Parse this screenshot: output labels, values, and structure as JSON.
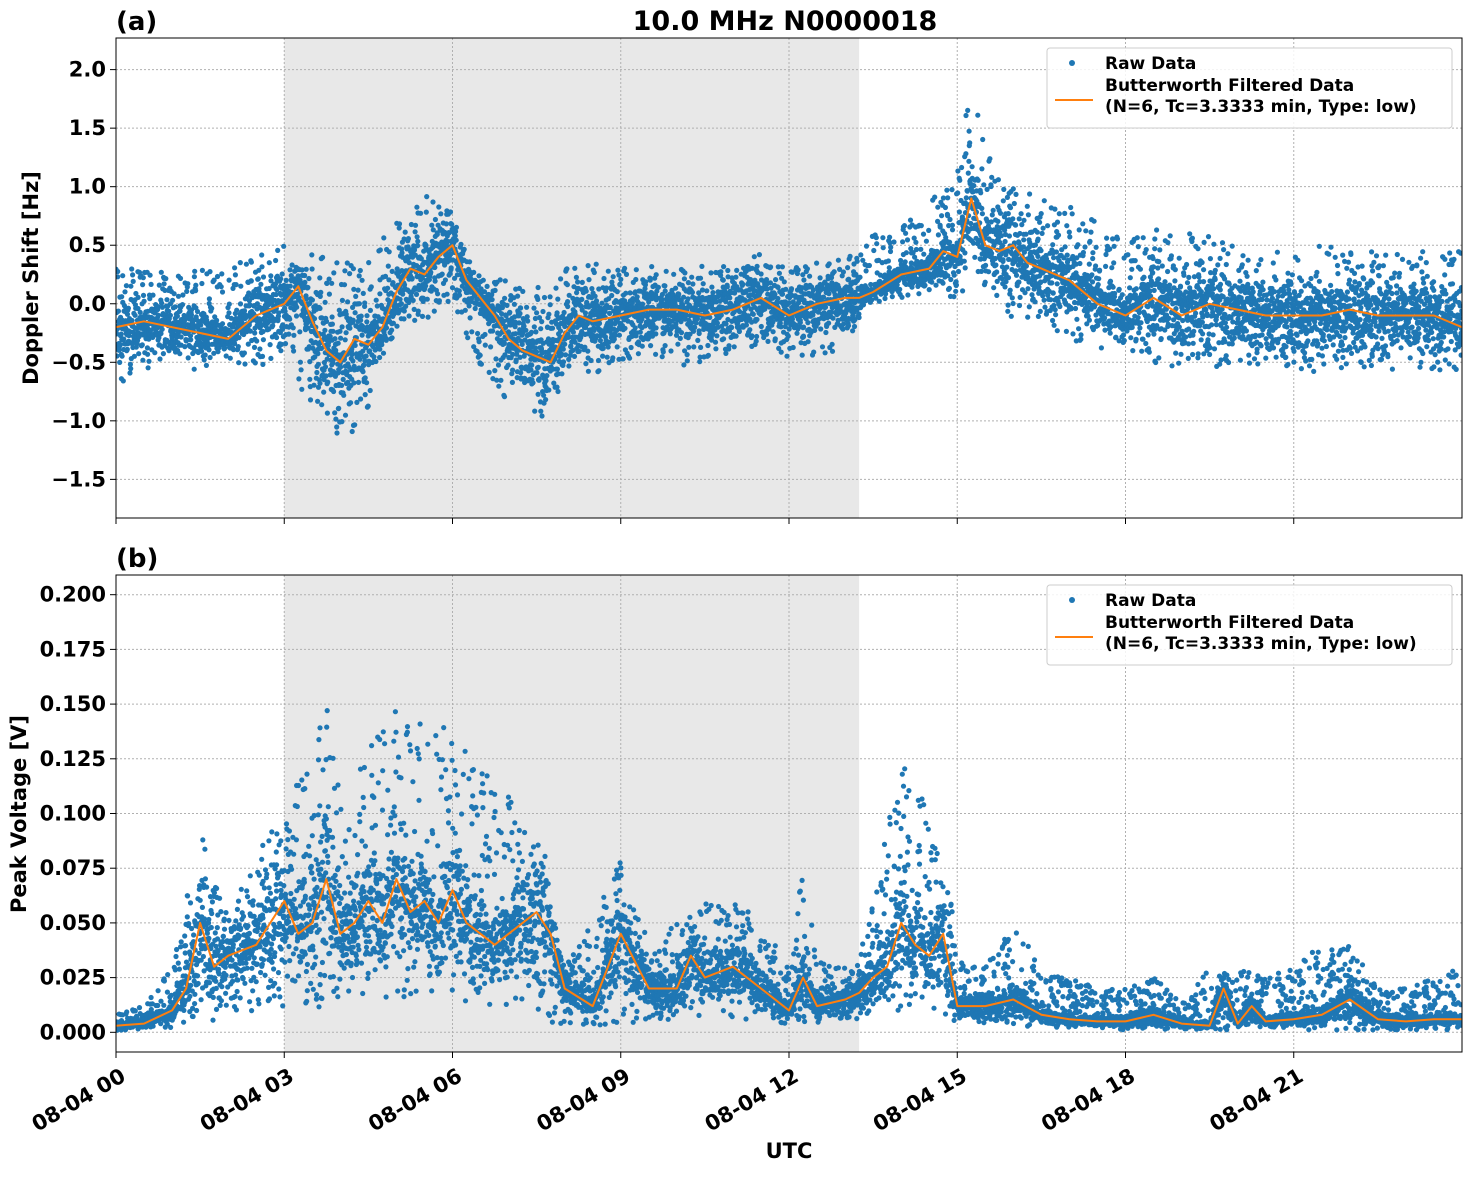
{
  "figure": {
    "title": "10.0 MHz N0000018",
    "xlabel": "UTC"
  },
  "colors": {
    "raw": "#1f77b4",
    "filtered": "#ff7f0e",
    "shade": "#e8e8e8",
    "grid": "#b0b0b0"
  },
  "chart_data": [
    {
      "panel": "(a)",
      "type": "scatter",
      "ylabel": "Doppler Shift [Hz]",
      "x_unit": "hours UTC since 08-04 00:00",
      "xlim": [
        0,
        24
      ],
      "ylim": [
        -1.83,
        2.27
      ],
      "yticks": [
        -1.5,
        -1.0,
        -0.5,
        0.0,
        0.5,
        1.0,
        1.5,
        2.0
      ],
      "ytick_labels": [
        "−1.5",
        "−1.0",
        "−0.5",
        "0.0",
        "0.5",
        "1.0",
        "1.5",
        "2.0"
      ],
      "xticks": [
        0,
        3,
        6,
        9,
        12,
        15,
        18,
        21
      ],
      "xtick_labels": [
        "08-04 00",
        "08-04 03",
        "08-04 06",
        "08-04 09",
        "08-04 12",
        "08-04 15",
        "08-04 18",
        "08-04 21"
      ],
      "shaded_interval": [
        3.0,
        13.25
      ],
      "grid": true,
      "legend": {
        "placement": "top-right",
        "entries": [
          "Raw Data",
          "Butterworth Filtered Data",
          "(N=6, Tc=3.3333 min, Type: low)"
        ]
      },
      "series": [
        {
          "name": "Raw Data",
          "kind": "band",
          "x": [
            0,
            0.5,
            1,
            1.5,
            2,
            2.5,
            3,
            3.5,
            3.75,
            4,
            4.25,
            4.5,
            5,
            5.5,
            5.75,
            6,
            6.25,
            6.5,
            7,
            7.5,
            7.75,
            8,
            8.5,
            9,
            9.5,
            10,
            10.5,
            11,
            11.5,
            12,
            12.5,
            13,
            13.25,
            13.5,
            14,
            14.5,
            15,
            15.25,
            15.5,
            16,
            16.5,
            17,
            17.5,
            18,
            18.5,
            19,
            19.5,
            20,
            20.5,
            21,
            21.5,
            22,
            22.5,
            23,
            23.5,
            24
          ],
          "low": [
            -0.7,
            -0.55,
            -0.6,
            -0.55,
            -0.5,
            -0.55,
            -0.45,
            -0.9,
            -1.05,
            -1.2,
            -1.1,
            -0.9,
            -0.35,
            -0.15,
            -0.05,
            0.05,
            -0.3,
            -0.55,
            -0.9,
            -0.95,
            -1.05,
            -0.6,
            -0.6,
            -0.5,
            -0.45,
            -0.55,
            -0.5,
            -0.4,
            -0.45,
            -0.45,
            -0.45,
            -0.4,
            -0.2,
            0.0,
            0.05,
            0.1,
            0.05,
            0.2,
            0.1,
            -0.15,
            -0.15,
            -0.3,
            -0.4,
            -0.4,
            -0.5,
            -0.55,
            -0.55,
            -0.5,
            -0.55,
            -0.55,
            -0.6,
            -0.55,
            -0.6,
            -0.55,
            -0.6,
            -0.6
          ],
          "high": [
            0.35,
            0.3,
            0.25,
            0.3,
            0.35,
            0.4,
            0.5,
            0.45,
            0.5,
            0.4,
            0.35,
            0.45,
            0.75,
            0.95,
            0.9,
            0.8,
            0.45,
            0.25,
            0.2,
            0.15,
            0.1,
            0.3,
            0.35,
            0.3,
            0.35,
            0.3,
            0.35,
            0.35,
            0.45,
            0.3,
            0.35,
            0.4,
            0.45,
            0.6,
            0.65,
            0.85,
            1.2,
            1.9,
            1.3,
            1.1,
            1.0,
            0.85,
            0.75,
            0.55,
            0.7,
            0.6,
            0.6,
            0.5,
            0.45,
            0.45,
            0.5,
            0.45,
            0.45,
            0.45,
            0.45,
            0.45
          ]
        },
        {
          "name": "Butterworth Filtered Data",
          "kind": "line",
          "x": [
            0,
            0.5,
            1,
            1.5,
            2,
            2.5,
            3,
            3.25,
            3.5,
            3.75,
            4,
            4.25,
            4.5,
            4.75,
            5,
            5.25,
            5.5,
            5.75,
            6,
            6.25,
            6.5,
            6.75,
            7,
            7.25,
            7.5,
            7.75,
            8,
            8.25,
            8.5,
            9,
            9.5,
            10,
            10.5,
            11,
            11.5,
            12,
            12.25,
            12.5,
            13,
            13.25,
            13.5,
            14,
            14.5,
            14.75,
            15,
            15.25,
            15.5,
            15.75,
            16,
            16.25,
            16.5,
            17,
            17.5,
            18,
            18.5,
            19,
            19.5,
            20,
            20.5,
            21,
            21.5,
            22,
            22.5,
            23,
            23.5,
            24
          ],
          "y": [
            -0.2,
            -0.15,
            -0.2,
            -0.25,
            -0.3,
            -0.1,
            0.0,
            0.15,
            -0.15,
            -0.4,
            -0.5,
            -0.3,
            -0.35,
            -0.2,
            0.1,
            0.3,
            0.25,
            0.4,
            0.5,
            0.2,
            0.05,
            -0.1,
            -0.3,
            -0.4,
            -0.45,
            -0.5,
            -0.25,
            -0.1,
            -0.15,
            -0.1,
            -0.05,
            -0.05,
            -0.1,
            -0.05,
            0.05,
            -0.1,
            -0.05,
            0.0,
            0.05,
            0.05,
            0.1,
            0.25,
            0.3,
            0.45,
            0.4,
            0.9,
            0.5,
            0.45,
            0.5,
            0.35,
            0.3,
            0.2,
            0.0,
            -0.1,
            0.05,
            -0.1,
            0.0,
            -0.05,
            -0.1,
            -0.1,
            -0.1,
            -0.05,
            -0.1,
            -0.1,
            -0.1,
            -0.2
          ]
        }
      ]
    },
    {
      "panel": "(b)",
      "type": "scatter",
      "ylabel": "Peak Voltage [V]",
      "x_unit": "hours UTC since 08-04 00:00",
      "xlim": [
        0,
        24
      ],
      "ylim": [
        -0.009,
        0.209
      ],
      "yticks": [
        0.0,
        0.025,
        0.05,
        0.075,
        0.1,
        0.125,
        0.15,
        0.175,
        0.2
      ],
      "ytick_labels": [
        "0.000",
        "0.025",
        "0.050",
        "0.075",
        "0.100",
        "0.125",
        "0.150",
        "0.175",
        "0.200"
      ],
      "xticks": [
        0,
        3,
        6,
        9,
        12,
        15,
        18,
        21
      ],
      "xtick_labels": [
        "08-04 00",
        "08-04 03",
        "08-04 06",
        "08-04 09",
        "08-04 12",
        "08-04 15",
        "08-04 18",
        "08-04 21"
      ],
      "shaded_interval": [
        3.0,
        13.25
      ],
      "grid": true,
      "legend": {
        "placement": "top-right",
        "entries": [
          "Raw Data",
          "Butterworth Filtered Data",
          "(N=6, Tc=3.3333 min, Type: low)"
        ]
      },
      "series": [
        {
          "name": "Raw Data",
          "kind": "band",
          "x": [
            0,
            0.5,
            1,
            1.25,
            1.5,
            1.75,
            2,
            2.5,
            3,
            3.5,
            3.75,
            4,
            4.5,
            5,
            5.5,
            6,
            6.5,
            7,
            7.5,
            7.75,
            8,
            8.5,
            9,
            9.5,
            10,
            10.5,
            11,
            11.5,
            12,
            12.25,
            12.5,
            13,
            13.25,
            13.5,
            14,
            14.5,
            14.75,
            15,
            15.5,
            16,
            16.5,
            17,
            17.5,
            18,
            18.5,
            19,
            19.5,
            20,
            20.5,
            21,
            21.5,
            22,
            22.5,
            23,
            23.5,
            24
          ],
          "low": [
            0.001,
            0.001,
            0.002,
            0.004,
            0.006,
            0.005,
            0.008,
            0.01,
            0.012,
            0.01,
            0.012,
            0.015,
            0.015,
            0.015,
            0.015,
            0.015,
            0.012,
            0.012,
            0.01,
            0.005,
            0.002,
            0.003,
            0.004,
            0.005,
            0.005,
            0.006,
            0.007,
            0.005,
            0.004,
            0.005,
            0.004,
            0.005,
            0.006,
            0.008,
            0.01,
            0.01,
            0.008,
            0.004,
            0.003,
            0.003,
            0.002,
            0.002,
            0.002,
            0.001,
            0.001,
            0.001,
            0.001,
            0.001,
            0.001,
            0.001,
            0.001,
            0.001,
            0.001,
            0.001,
            0.001,
            0.001
          ],
          "high": [
            0.008,
            0.012,
            0.03,
            0.06,
            0.1,
            0.07,
            0.055,
            0.08,
            0.11,
            0.12,
            0.17,
            0.12,
            0.13,
            0.15,
            0.14,
            0.14,
            0.12,
            0.11,
            0.1,
            0.07,
            0.03,
            0.05,
            0.08,
            0.04,
            0.05,
            0.06,
            0.065,
            0.05,
            0.03,
            0.075,
            0.035,
            0.03,
            0.035,
            0.06,
            0.13,
            0.1,
            0.09,
            0.035,
            0.03,
            0.05,
            0.03,
            0.025,
            0.02,
            0.02,
            0.025,
            0.015,
            0.03,
            0.03,
            0.025,
            0.03,
            0.04,
            0.04,
            0.02,
            0.02,
            0.025,
            0.03
          ]
        },
        {
          "name": "Butterworth Filtered Data",
          "kind": "line",
          "x": [
            0,
            0.5,
            1,
            1.25,
            1.5,
            1.75,
            2,
            2.5,
            3,
            3.25,
            3.5,
            3.75,
            4,
            4.25,
            4.5,
            4.75,
            5,
            5.25,
            5.5,
            5.75,
            6,
            6.25,
            6.5,
            6.75,
            7,
            7.25,
            7.5,
            7.75,
            8,
            8.5,
            9,
            9.5,
            10,
            10.25,
            10.5,
            11,
            11.5,
            12,
            12.25,
            12.5,
            13,
            13.25,
            13.5,
            13.75,
            14,
            14.25,
            14.5,
            14.75,
            15,
            15.5,
            16,
            16.5,
            17,
            17.5,
            18,
            18.5,
            19,
            19.5,
            19.75,
            20,
            20.25,
            20.5,
            21,
            21.5,
            22,
            22.5,
            23,
            23.5,
            24
          ],
          "y": [
            0.003,
            0.004,
            0.01,
            0.02,
            0.05,
            0.03,
            0.035,
            0.04,
            0.06,
            0.045,
            0.05,
            0.07,
            0.045,
            0.05,
            0.06,
            0.05,
            0.07,
            0.055,
            0.06,
            0.05,
            0.065,
            0.05,
            0.045,
            0.04,
            0.045,
            0.05,
            0.055,
            0.045,
            0.02,
            0.012,
            0.045,
            0.02,
            0.02,
            0.035,
            0.025,
            0.03,
            0.02,
            0.01,
            0.025,
            0.012,
            0.015,
            0.018,
            0.025,
            0.03,
            0.05,
            0.04,
            0.035,
            0.045,
            0.012,
            0.012,
            0.015,
            0.008,
            0.006,
            0.005,
            0.005,
            0.008,
            0.004,
            0.003,
            0.02,
            0.004,
            0.012,
            0.005,
            0.006,
            0.008,
            0.015,
            0.006,
            0.005,
            0.006,
            0.006
          ]
        }
      ]
    }
  ]
}
